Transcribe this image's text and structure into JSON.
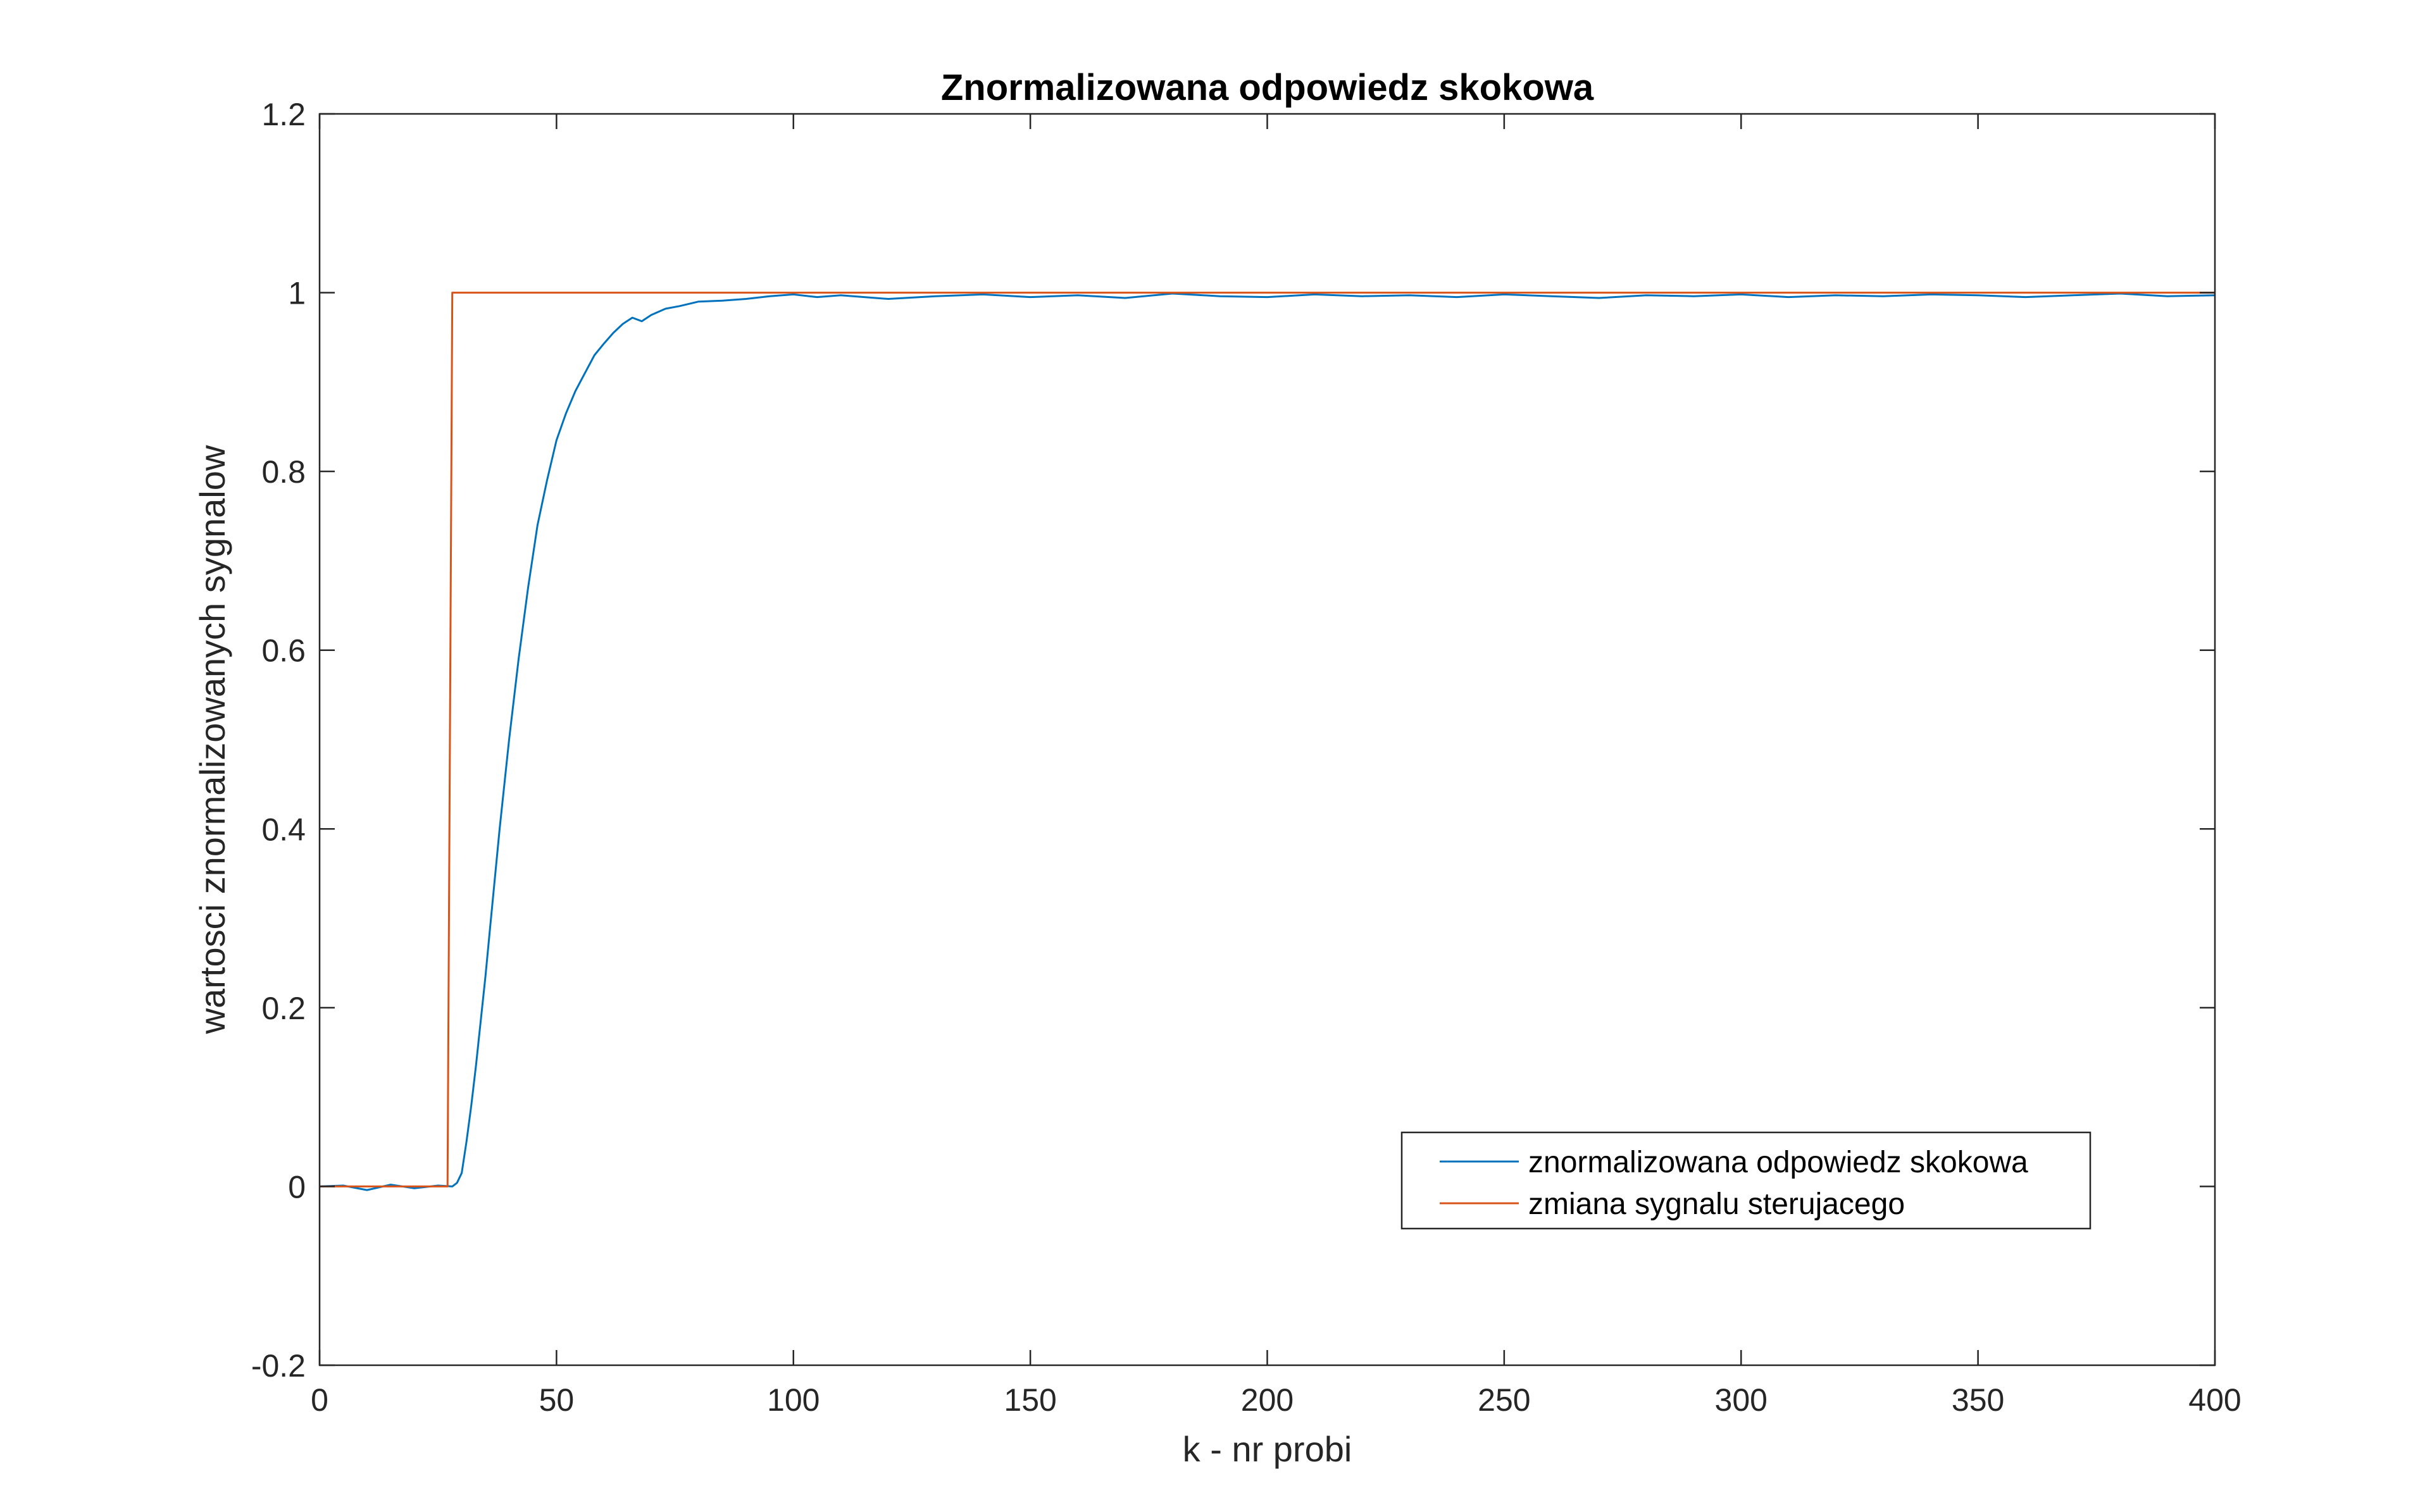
{
  "chart_data": {
    "type": "line",
    "title": "Znormalizowana odpowiedz skokowa",
    "xlabel": "k - nr probi",
    "ylabel": "wartosci znormalizowanych sygnalow",
    "xlim": [
      0,
      400
    ],
    "ylim": [
      -0.2,
      1.2
    ],
    "xticks": [
      0,
      50,
      100,
      150,
      200,
      250,
      300,
      350,
      400
    ],
    "yticks": [
      -0.2,
      0,
      0.2,
      0.4,
      0.6,
      0.8,
      1,
      1.2
    ],
    "xtick_labels": [
      "0",
      "50",
      "100",
      "150",
      "200",
      "250",
      "300",
      "350",
      "400"
    ],
    "ytick_labels": [
      "-0.2",
      "0",
      "0.2",
      "0.4",
      "0.6",
      "0.8",
      "1",
      "1.2"
    ],
    "grid": false,
    "legend_placement": "bottom-right",
    "series": [
      {
        "name": "znormalizowana odpowiedz skokowa",
        "color": "#0072BD",
        "x": [
          0,
          5,
          10,
          15,
          20,
          25,
          28,
          29,
          30,
          31,
          32,
          33,
          34,
          35,
          36,
          37,
          38,
          39,
          40,
          42,
          44,
          46,
          48,
          50,
          52,
          54,
          56,
          58,
          60,
          62,
          64,
          66,
          68,
          70,
          73,
          76,
          80,
          85,
          90,
          95,
          100,
          105,
          110,
          120,
          130,
          140,
          150,
          160,
          170,
          180,
          190,
          200,
          210,
          220,
          230,
          240,
          250,
          260,
          270,
          280,
          290,
          300,
          310,
          320,
          330,
          340,
          350,
          360,
          370,
          380,
          390,
          400
        ],
        "y": [
          0.0,
          0.001,
          -0.004,
          0.002,
          -0.002,
          0.001,
          0.0,
          0.004,
          0.015,
          0.05,
          0.09,
          0.135,
          0.185,
          0.235,
          0.29,
          0.345,
          0.4,
          0.45,
          0.5,
          0.59,
          0.67,
          0.74,
          0.79,
          0.835,
          0.865,
          0.89,
          0.91,
          0.93,
          0.943,
          0.955,
          0.965,
          0.972,
          0.968,
          0.975,
          0.982,
          0.985,
          0.99,
          0.991,
          0.993,
          0.996,
          0.998,
          0.995,
          0.997,
          0.993,
          0.996,
          0.998,
          0.995,
          0.997,
          0.994,
          0.999,
          0.996,
          0.995,
          0.998,
          0.996,
          0.997,
          0.995,
          0.998,
          0.996,
          0.994,
          0.997,
          0.996,
          0.998,
          0.995,
          0.997,
          0.996,
          0.998,
          0.997,
          0.995,
          0.997,
          0.999,
          0.996,
          0.997
        ]
      },
      {
        "name": "zmiana sygnalu sterujacego",
        "color": "#D95319",
        "x": [
          0,
          27,
          28,
          400
        ],
        "y": [
          0,
          0,
          1,
          1
        ]
      }
    ]
  }
}
